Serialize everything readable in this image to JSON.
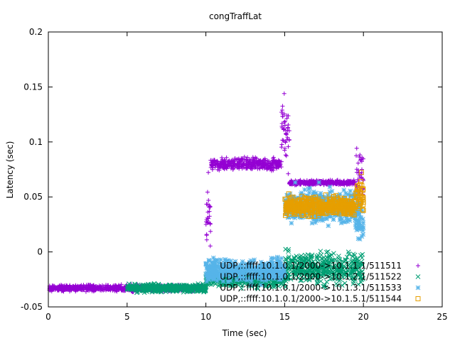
{
  "chart_data": {
    "type": "scatter",
    "title": "congTraffLat",
    "xlabel": "Time (sec)",
    "ylabel": "Latency (sec)",
    "xlim": [
      0,
      25
    ],
    "ylim": [
      -0.05,
      0.2
    ],
    "xticks": [
      0,
      5,
      10,
      15,
      20,
      25
    ],
    "yticks": [
      -0.05,
      0,
      0.05,
      0.1,
      0.15,
      0.2
    ],
    "ytick_labels": [
      "-0.05",
      "0",
      "0.05",
      "0.1",
      "0.15",
      "0.2"
    ],
    "grid": false,
    "legend_position": "bottom-right",
    "series": [
      {
        "name": "UDP,::ffff:10.1.0.1/2000->10.1.1.1/511511",
        "color": "#9400d3",
        "marker": "plus",
        "segments": [
          {
            "x_start": 0,
            "x_end": 10,
            "y_center": -0.033,
            "y_spread": 0.004
          },
          {
            "x_start": 10,
            "x_end": 10.3,
            "y_center": 0.03,
            "y_spread": 0.05
          },
          {
            "x_start": 10.3,
            "x_end": 14.8,
            "y_center": 0.08,
            "y_spread": 0.008
          },
          {
            "x_start": 14.8,
            "x_end": 15.3,
            "y_center": 0.11,
            "y_spread": 0.045
          },
          {
            "x_start": 15.3,
            "x_end": 19.5,
            "y_center": 0.063,
            "y_spread": 0.003
          },
          {
            "x_start": 19.5,
            "x_end": 20,
            "y_center": 0.07,
            "y_spread": 0.035
          }
        ]
      },
      {
        "name": "UDP,::ffff:10.1.0.1/2000->10.1.2.1/511522",
        "color": "#009e73",
        "marker": "cross",
        "segments": [
          {
            "x_start": 5,
            "x_end": 10,
            "y_center": -0.033,
            "y_spread": 0.005
          },
          {
            "x_start": 10,
            "x_end": 15,
            "y_center": -0.025,
            "y_spread": 0.01
          },
          {
            "x_start": 15,
            "x_end": 20,
            "y_center": -0.015,
            "y_spread": 0.02
          }
        ]
      },
      {
        "name": "UDP,::ffff:10.1.0.1/2000->10.1.3.1/511533",
        "color": "#56b4e9",
        "marker": "star",
        "segments": [
          {
            "x_start": 10,
            "x_end": 15,
            "y_center": -0.017,
            "y_spread": 0.014
          },
          {
            "x_start": 15,
            "x_end": 19.5,
            "y_center": 0.042,
            "y_spread": 0.022
          },
          {
            "x_start": 19.5,
            "x_end": 20,
            "y_center": 0.03,
            "y_spread": 0.03
          }
        ]
      },
      {
        "name": "UDP,::ffff:10.1.0.1/2000->10.1.5.1/511544",
        "color": "#e69f00",
        "marker": "square",
        "segments": [
          {
            "x_start": 15,
            "x_end": 19.5,
            "y_center": 0.042,
            "y_spread": 0.012
          },
          {
            "x_start": 19.5,
            "x_end": 20,
            "y_center": 0.05,
            "y_spread": 0.025
          }
        ]
      }
    ]
  }
}
